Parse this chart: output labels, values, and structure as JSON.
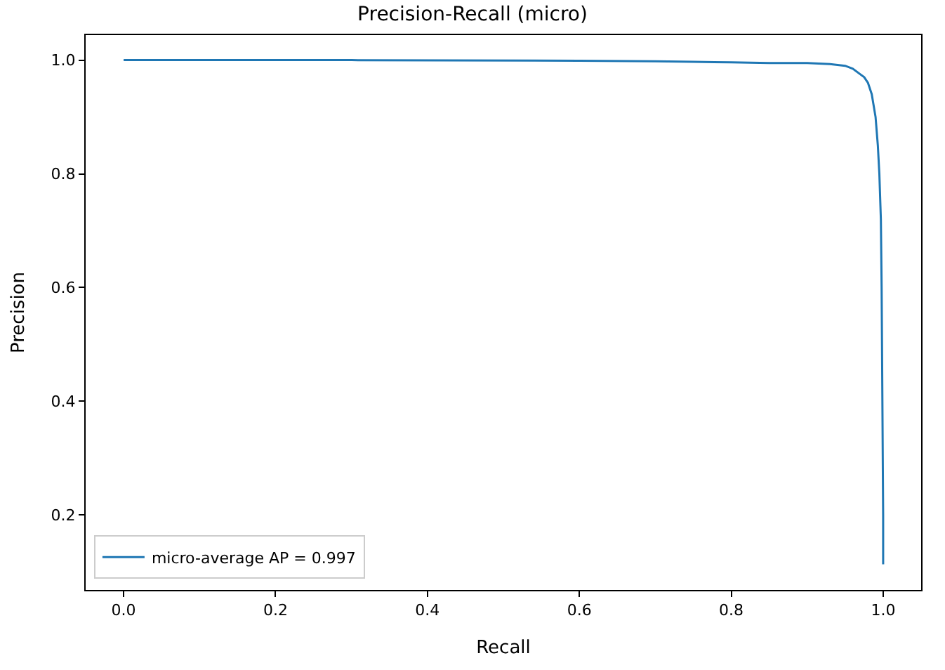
{
  "chart_data": {
    "type": "line",
    "title": "Precision-Recall (micro)",
    "xlabel": "Recall",
    "ylabel": "Precision",
    "series": [
      {
        "name": "micro-average AP = 0.997",
        "color": "#1f77b4",
        "x": [
          0.0,
          0.3,
          0.6,
          0.7,
          0.75,
          0.8,
          0.85,
          0.9,
          0.93,
          0.95,
          0.96,
          0.97,
          0.975,
          0.98,
          0.985,
          0.99,
          0.993,
          0.995,
          0.997,
          0.998,
          0.999,
          1.0,
          1.0
        ],
        "values": [
          1.0,
          1.0,
          0.999,
          0.998,
          0.997,
          0.996,
          0.995,
          0.995,
          0.993,
          0.99,
          0.985,
          0.975,
          0.97,
          0.96,
          0.94,
          0.9,
          0.85,
          0.8,
          0.72,
          0.6,
          0.4,
          0.2,
          0.113
        ]
      }
    ],
    "xlim": [
      -0.05,
      1.05
    ],
    "xticks": [
      {
        "value": 0,
        "label": "0.0"
      },
      0.2,
      0.4,
      0.6,
      0.8,
      {
        "value": 1,
        "label": "1.0"
      }
    ],
    "ylim": [
      0.068,
      1.044
    ],
    "yticks": [
      0.2,
      0.4,
      0.6,
      0.8,
      {
        "value": 1,
        "label": "1.0"
      }
    ],
    "legend": "bottom left"
  }
}
